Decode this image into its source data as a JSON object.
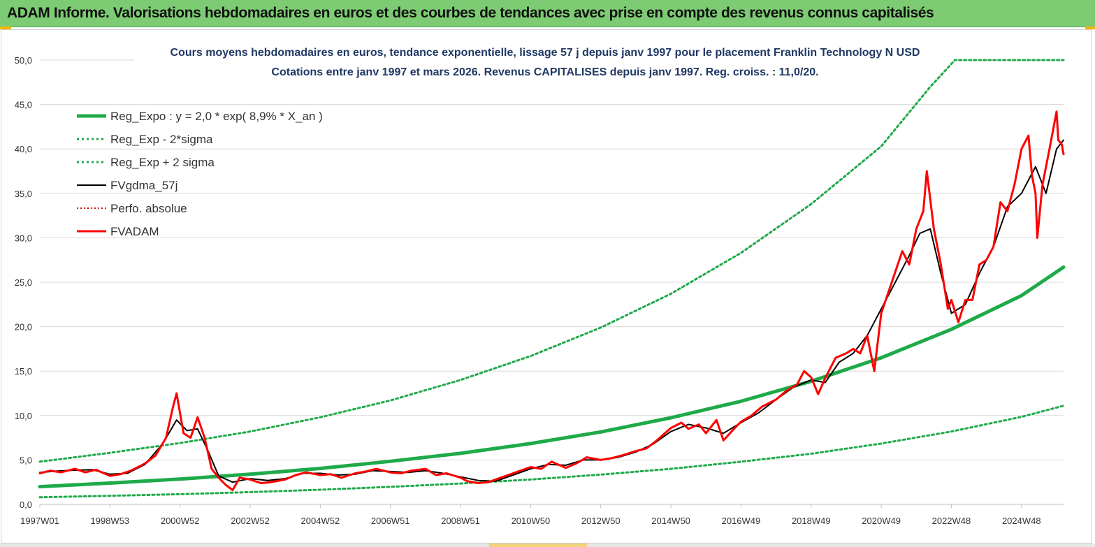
{
  "header": {
    "title": "ADAM Informe. Valorisations hebdomadaires en euros et des courbes de tendances avec prise en compte des revenus connus capitalisés"
  },
  "chart_data": {
    "type": "line",
    "title_lines": [
      "Cours moyens hebdomadaires en euros, tendance exponentielle, lissage 57 j depuis janv 1997  pour le placement Franklin Technology N USD",
      "Cotations entre janv 1997 et mars 2026. Revenus CAPITALISES  depuis janv 1997. Reg. croiss. : 11,0/20."
    ],
    "xlim": [
      1997.0,
      2026.2
    ],
    "ylim": [
      0,
      50
    ],
    "y_ticks": [
      "0,0",
      "5,0",
      "10,0",
      "15,0",
      "20,0",
      "25,0",
      "30,0",
      "35,0",
      "40,0",
      "45,0",
      "50,0"
    ],
    "x_ticks": [
      {
        "label": "1997W01",
        "x": 1997.0
      },
      {
        "label": "1998W53",
        "x": 1999.0
      },
      {
        "label": "2000W52",
        "x": 2001.0
      },
      {
        "label": "2002W52",
        "x": 2003.0
      },
      {
        "label": "2004W52",
        "x": 2005.0
      },
      {
        "label": "2006W51",
        "x": 2007.0
      },
      {
        "label": "2008W51",
        "x": 2009.0
      },
      {
        "label": "2010W50",
        "x": 2011.0
      },
      {
        "label": "2012W50",
        "x": 2013.0
      },
      {
        "label": "2014W50",
        "x": 2015.0
      },
      {
        "label": "2016W49",
        "x": 2017.0
      },
      {
        "label": "2018W49",
        "x": 2019.0
      },
      {
        "label": "2020W49",
        "x": 2021.0
      },
      {
        "label": "2022W48",
        "x": 2023.0
      },
      {
        "label": "2024W48",
        "x": 2025.0
      }
    ],
    "grid": "horizontal",
    "legend_position": "top-left",
    "series": [
      {
        "name": "Reg_Expo : y = 2,0 * exp( 8,9% *  X_an )",
        "color": "#1faa4a",
        "style": "solid",
        "width": 5,
        "points": [
          [
            1997.0,
            2.0
          ],
          [
            1999.0,
            2.4
          ],
          [
            2001.0,
            2.85
          ],
          [
            2003.0,
            3.4
          ],
          [
            2005.0,
            4.05
          ],
          [
            2007.0,
            4.85
          ],
          [
            2009.0,
            5.75
          ],
          [
            2011.0,
            6.85
          ],
          [
            2013.0,
            8.15
          ],
          [
            2015.0,
            9.75
          ],
          [
            2017.0,
            11.6
          ],
          [
            2019.0,
            13.85
          ],
          [
            2021.0,
            16.5
          ],
          [
            2023.0,
            19.7
          ],
          [
            2025.0,
            23.5
          ],
          [
            2026.2,
            26.7
          ]
        ]
      },
      {
        "name": "Reg_Exp - 2*sigma",
        "color": "#1faa4a",
        "style": "dotted",
        "width": 3,
        "points": [
          [
            1997.0,
            0.8
          ],
          [
            1999.0,
            0.97
          ],
          [
            2001.0,
            1.15
          ],
          [
            2003.0,
            1.38
          ],
          [
            2005.0,
            1.65
          ],
          [
            2007.0,
            1.97
          ],
          [
            2009.0,
            2.35
          ],
          [
            2011.0,
            2.8
          ],
          [
            2013.0,
            3.35
          ],
          [
            2015.0,
            4.0
          ],
          [
            2017.0,
            4.8
          ],
          [
            2019.0,
            5.7
          ],
          [
            2021.0,
            6.85
          ],
          [
            2023.0,
            8.2
          ],
          [
            2025.0,
            9.85
          ],
          [
            2026.2,
            11.1
          ]
        ]
      },
      {
        "name": "Reg_Exp + 2 sigma",
        "color": "#1faa4a",
        "style": "dotted",
        "width": 3,
        "points": [
          [
            1997.0,
            4.8
          ],
          [
            1999.0,
            5.8
          ],
          [
            2001.0,
            6.9
          ],
          [
            2003.0,
            8.2
          ],
          [
            2005.0,
            9.8
          ],
          [
            2007.0,
            11.7
          ],
          [
            2009.0,
            14.0
          ],
          [
            2011.0,
            16.7
          ],
          [
            2013.0,
            19.9
          ],
          [
            2015.0,
            23.7
          ],
          [
            2017.0,
            28.3
          ],
          [
            2019.0,
            33.8
          ],
          [
            2021.0,
            40.3
          ],
          [
            2022.4,
            47.0
          ],
          [
            2023.1,
            50.0
          ],
          [
            2026.2,
            50.0
          ]
        ]
      },
      {
        "name": "FVgdma_57j",
        "color": "#000000",
        "style": "solid",
        "width": 2,
        "points": [
          [
            1997.0,
            3.6
          ],
          [
            1997.5,
            3.75
          ],
          [
            1998.0,
            3.85
          ],
          [
            1998.5,
            3.9
          ],
          [
            1999.0,
            3.4
          ],
          [
            1999.5,
            3.5
          ],
          [
            2000.0,
            4.5
          ],
          [
            2000.5,
            6.8
          ],
          [
            2000.9,
            9.5
          ],
          [
            2001.2,
            8.3
          ],
          [
            2001.5,
            8.5
          ],
          [
            2001.8,
            6.0
          ],
          [
            2002.1,
            3.2
          ],
          [
            2002.5,
            2.5
          ],
          [
            2003.0,
            2.9
          ],
          [
            2003.5,
            2.7
          ],
          [
            2004.0,
            2.9
          ],
          [
            2004.5,
            3.5
          ],
          [
            2005.0,
            3.5
          ],
          [
            2005.5,
            3.3
          ],
          [
            2006.0,
            3.4
          ],
          [
            2006.5,
            3.8
          ],
          [
            2007.0,
            3.7
          ],
          [
            2007.5,
            3.6
          ],
          [
            2008.0,
            3.8
          ],
          [
            2008.5,
            3.5
          ],
          [
            2009.0,
            3.1
          ],
          [
            2009.5,
            2.7
          ],
          [
            2010.0,
            2.6
          ],
          [
            2010.5,
            3.3
          ],
          [
            2011.0,
            4.0
          ],
          [
            2011.5,
            4.5
          ],
          [
            2012.0,
            4.4
          ],
          [
            2012.5,
            5.0
          ],
          [
            2013.0,
            5.0
          ],
          [
            2013.5,
            5.3
          ],
          [
            2014.0,
            5.9
          ],
          [
            2014.5,
            6.8
          ],
          [
            2015.0,
            8.2
          ],
          [
            2015.5,
            9.0
          ],
          [
            2016.0,
            8.6
          ],
          [
            2016.5,
            8.0
          ],
          [
            2017.0,
            9.2
          ],
          [
            2017.5,
            10.3
          ],
          [
            2018.0,
            11.8
          ],
          [
            2018.5,
            13.2
          ],
          [
            2019.0,
            14.0
          ],
          [
            2019.4,
            13.7
          ],
          [
            2019.8,
            16.0
          ],
          [
            2020.2,
            17.0
          ],
          [
            2020.6,
            19.0
          ],
          [
            2021.0,
            22.0
          ],
          [
            2021.4,
            25.0
          ],
          [
            2021.8,
            28.0
          ],
          [
            2022.1,
            30.5
          ],
          [
            2022.4,
            31.0
          ],
          [
            2022.7,
            26.0
          ],
          [
            2023.0,
            21.5
          ],
          [
            2023.4,
            22.5
          ],
          [
            2023.8,
            26.0
          ],
          [
            2024.2,
            29.0
          ],
          [
            2024.6,
            33.5
          ],
          [
            2025.0,
            35.0
          ],
          [
            2025.4,
            38.0
          ],
          [
            2025.7,
            35.0
          ],
          [
            2026.0,
            40.0
          ],
          [
            2026.2,
            41.0
          ]
        ]
      },
      {
        "name": "Perfo. absolue",
        "color": "#e00000",
        "style": "dotted",
        "width": 2,
        "points": []
      },
      {
        "name": "FVADAM",
        "color": "#ff0000",
        "style": "solid",
        "width": 3,
        "points": [
          [
            1997.0,
            3.5
          ],
          [
            1997.3,
            3.8
          ],
          [
            1997.6,
            3.6
          ],
          [
            1998.0,
            4.0
          ],
          [
            1998.3,
            3.6
          ],
          [
            1998.6,
            3.9
          ],
          [
            1999.0,
            3.2
          ],
          [
            1999.3,
            3.4
          ],
          [
            1999.6,
            3.8
          ],
          [
            2000.0,
            4.6
          ],
          [
            2000.3,
            5.5
          ],
          [
            2000.6,
            7.5
          ],
          [
            2000.8,
            11.0
          ],
          [
            2000.9,
            12.5
          ],
          [
            2001.1,
            8.0
          ],
          [
            2001.3,
            7.5
          ],
          [
            2001.5,
            9.8
          ],
          [
            2001.7,
            7.5
          ],
          [
            2001.9,
            4.0
          ],
          [
            2002.1,
            3.0
          ],
          [
            2002.3,
            2.2
          ],
          [
            2002.5,
            1.6
          ],
          [
            2002.7,
            3.0
          ],
          [
            2003.0,
            2.8
          ],
          [
            2003.3,
            2.4
          ],
          [
            2003.6,
            2.5
          ],
          [
            2004.0,
            2.8
          ],
          [
            2004.3,
            3.3
          ],
          [
            2004.6,
            3.6
          ],
          [
            2005.0,
            3.3
          ],
          [
            2005.3,
            3.4
          ],
          [
            2005.6,
            3.0
          ],
          [
            2006.0,
            3.5
          ],
          [
            2006.3,
            3.7
          ],
          [
            2006.6,
            4.0
          ],
          [
            2007.0,
            3.6
          ],
          [
            2007.3,
            3.5
          ],
          [
            2007.6,
            3.8
          ],
          [
            2008.0,
            4.0
          ],
          [
            2008.3,
            3.3
          ],
          [
            2008.6,
            3.5
          ],
          [
            2009.0,
            3.0
          ],
          [
            2009.2,
            2.6
          ],
          [
            2009.5,
            2.4
          ],
          [
            2009.8,
            2.5
          ],
          [
            2010.0,
            2.8
          ],
          [
            2010.5,
            3.5
          ],
          [
            2011.0,
            4.2
          ],
          [
            2011.3,
            4.0
          ],
          [
            2011.6,
            4.8
          ],
          [
            2012.0,
            4.1
          ],
          [
            2012.3,
            4.6
          ],
          [
            2012.6,
            5.3
          ],
          [
            2013.0,
            5.0
          ],
          [
            2013.3,
            5.2
          ],
          [
            2013.6,
            5.5
          ],
          [
            2014.0,
            6.0
          ],
          [
            2014.3,
            6.3
          ],
          [
            2014.6,
            7.2
          ],
          [
            2015.0,
            8.6
          ],
          [
            2015.3,
            9.2
          ],
          [
            2015.5,
            8.5
          ],
          [
            2015.8,
            9.0
          ],
          [
            2016.0,
            8.0
          ],
          [
            2016.3,
            9.5
          ],
          [
            2016.5,
            7.2
          ],
          [
            2016.8,
            8.5
          ],
          [
            2017.0,
            9.3
          ],
          [
            2017.3,
            10.0
          ],
          [
            2017.6,
            11.0
          ],
          [
            2018.0,
            11.8
          ],
          [
            2018.3,
            12.8
          ],
          [
            2018.6,
            13.5
          ],
          [
            2018.8,
            15.0
          ],
          [
            2019.0,
            14.3
          ],
          [
            2019.2,
            12.4
          ],
          [
            2019.4,
            14.2
          ],
          [
            2019.7,
            16.5
          ],
          [
            2020.0,
            17.0
          ],
          [
            2020.2,
            17.5
          ],
          [
            2020.4,
            17.0
          ],
          [
            2020.6,
            19.0
          ],
          [
            2020.8,
            15.0
          ],
          [
            2021.0,
            21.5
          ],
          [
            2021.3,
            25.0
          ],
          [
            2021.6,
            28.5
          ],
          [
            2021.8,
            27.0
          ],
          [
            2022.0,
            31.0
          ],
          [
            2022.2,
            33.0
          ],
          [
            2022.3,
            37.5
          ],
          [
            2022.5,
            31.0
          ],
          [
            2022.7,
            27.0
          ],
          [
            2022.9,
            22.0
          ],
          [
            2023.0,
            23.0
          ],
          [
            2023.2,
            20.5
          ],
          [
            2023.4,
            23.0
          ],
          [
            2023.6,
            23.0
          ],
          [
            2023.8,
            27.0
          ],
          [
            2024.0,
            27.5
          ],
          [
            2024.2,
            29.0
          ],
          [
            2024.4,
            34.0
          ],
          [
            2024.6,
            33.0
          ],
          [
            2024.8,
            36.0
          ],
          [
            2025.0,
            40.0
          ],
          [
            2025.2,
            41.5
          ],
          [
            2025.3,
            37.0
          ],
          [
            2025.4,
            35.0
          ],
          [
            2025.45,
            30.0
          ],
          [
            2025.6,
            36.0
          ],
          [
            2025.8,
            40.0
          ],
          [
            2026.0,
            44.2
          ],
          [
            2026.05,
            41.0
          ],
          [
            2026.15,
            40.5
          ],
          [
            2026.2,
            39.4
          ]
        ]
      }
    ]
  }
}
